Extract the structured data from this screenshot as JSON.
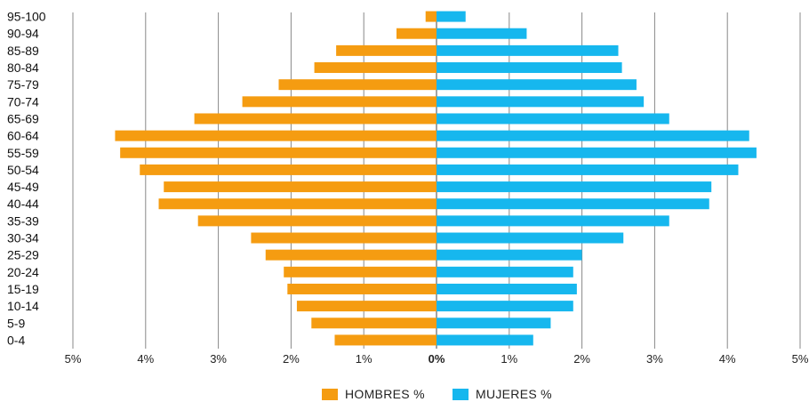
{
  "chart_data": {
    "type": "bar",
    "orientation": "horizontal",
    "layout": "population-pyramid",
    "categories": [
      "95-100",
      "90-94",
      "85-89",
      "80-84",
      "75-79",
      "70-74",
      "65-69",
      "60-64",
      "55-59",
      "50-54",
      "45-49",
      "40-44",
      "35-39",
      "30-34",
      "25-29",
      "20-24",
      "15-19",
      "10-14",
      "5-9",
      "0-4"
    ],
    "series": [
      {
        "name": "HOMBRES %",
        "color": "#F59C11",
        "side": "left",
        "values": [
          0.15,
          0.55,
          1.38,
          1.68,
          2.17,
          2.67,
          3.33,
          4.42,
          4.35,
          4.08,
          3.75,
          3.82,
          3.28,
          2.55,
          2.35,
          2.1,
          2.05,
          1.92,
          1.72,
          1.4
        ]
      },
      {
        "name": "MUJERES %",
        "color": "#16B7EE",
        "side": "right",
        "values": [
          0.4,
          1.24,
          2.5,
          2.55,
          2.75,
          2.85,
          3.2,
          4.3,
          4.4,
          4.15,
          3.78,
          3.75,
          3.2,
          2.57,
          2.0,
          1.88,
          1.93,
          1.88,
          1.57,
          1.33
        ]
      }
    ],
    "xlim": [
      -5,
      5
    ],
    "x_ticks": [
      {
        "value": -5,
        "label": "5%"
      },
      {
        "value": -4,
        "label": "4%"
      },
      {
        "value": -3,
        "label": "3%"
      },
      {
        "value": -2,
        "label": "2%"
      },
      {
        "value": -1,
        "label": "1%"
      },
      {
        "value": 0,
        "label": "0%"
      },
      {
        "value": 1,
        "label": "1%"
      },
      {
        "value": 2,
        "label": "2%"
      },
      {
        "value": 3,
        "label": "3%"
      },
      {
        "value": 4,
        "label": "4%"
      },
      {
        "value": 5,
        "label": "5%"
      }
    ],
    "grid": true,
    "legend": "bottom-center",
    "gridline_color": "#888888"
  },
  "legend": {
    "items": [
      {
        "label": "HOMBRES %",
        "color": "#F59C11"
      },
      {
        "label": "MUJERES %",
        "color": "#16B7EE"
      }
    ]
  }
}
